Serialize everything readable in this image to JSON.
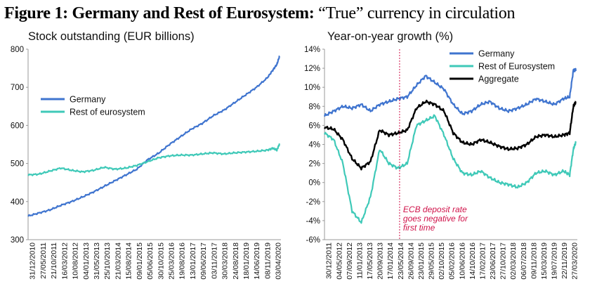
{
  "figure": {
    "title_bold": "Figure 1: Germany and Rest of Eurosystem:",
    "title_rest": " “True” currency in circulation"
  },
  "colors": {
    "germany": "#3f74cf",
    "rest": "#3fc9b8",
    "aggregate": "#000000",
    "marker": "#d0134a"
  },
  "chart_data": [
    {
      "type": "line",
      "title": "Stock outstanding (EUR billions)",
      "ylim": [
        300,
        800
      ],
      "yticks": [
        300,
        400,
        500,
        600,
        700,
        800
      ],
      "grid": false,
      "legend_position": "upper-left",
      "x_tick_labels": [
        "31/12/2010",
        "27/05/2011",
        "21/10/2011",
        "16/03/2012",
        "10/08/2012",
        "04/01/2013",
        "31/05/2013",
        "25/10/2013",
        "21/03/2014",
        "15/08/2014",
        "09/01/2015",
        "05/06/2015",
        "30/10/2015",
        "25/03/2016",
        "19/08/2016",
        "13/01/2017",
        "09/06/2017",
        "03/11/2017",
        "30/03/2018",
        "24/08/2018",
        "18/01/2019",
        "14/06/2019",
        "08/11/2019",
        "03/04/2020"
      ],
      "x_tick_labels_all": [
        "31/12/2010",
        "27/05/2011",
        "21/10/2011",
        "16/03/2012",
        "10/08/2012",
        "04/01/2013",
        "31/05/2013",
        "25/10/2013",
        "21/03/2014",
        "15/08/2014",
        "09/01/2015",
        "05/06/2015",
        "30/10/2015",
        "25/03/2016",
        "19/08/2016",
        "13/01/2017",
        "09/06/2017",
        "03/11/2017",
        "30/03/2018",
        "24/08/2018",
        "18/01/2019",
        "14/06/2019",
        "08/11/2019",
        "03/04/2020"
      ],
      "x": [
        2011.0,
        2011.4,
        2011.8,
        2012.2,
        2012.6,
        2013.0,
        2013.4,
        2013.8,
        2014.2,
        2014.6,
        2015.0,
        2015.4,
        2015.8,
        2016.2,
        2016.6,
        2017.0,
        2017.4,
        2017.8,
        2018.2,
        2018.6,
        2019.0,
        2019.4,
        2019.8,
        2020.0,
        2020.15,
        2020.25
      ],
      "series": [
        {
          "name": "Germany",
          "values": [
            362,
            370,
            378,
            390,
            400,
            412,
            425,
            440,
            455,
            470,
            485,
            510,
            527,
            550,
            570,
            590,
            605,
            625,
            640,
            660,
            680,
            700,
            725,
            745,
            760,
            782
          ]
        },
        {
          "name": "Rest of eurosystem",
          "values": [
            470,
            472,
            480,
            488,
            482,
            478,
            482,
            490,
            485,
            488,
            495,
            505,
            515,
            520,
            522,
            522,
            525,
            528,
            525,
            528,
            530,
            532,
            535,
            540,
            535,
            552
          ]
        }
      ]
    },
    {
      "type": "line",
      "title": "Year-on-year growth (%)",
      "ylim": [
        -6,
        14
      ],
      "yticks": [
        "-6%",
        "-4%",
        "-2%",
        "0%",
        "2%",
        "4%",
        "6%",
        "8%",
        "10%",
        "12%",
        "14%"
      ],
      "grid": false,
      "legend_position": "upper-right",
      "x_tick_labels": [
        "30/12/2011",
        "04/05/2012",
        "07/09/2012",
        "11/01/2013",
        "17/05/2013",
        "20/09/2013",
        "17/01/2014",
        "23/05/2014",
        "26/09/2014",
        "23/01/2015",
        "29/05/2015",
        "02/10/2015",
        "05/02/2016",
        "10/06/2016",
        "14/10/2016",
        "17/02/2017",
        "23/06/2017",
        "27/10/2017",
        "02/03/2018",
        "06/07/2018",
        "09/11/2018",
        "15/03/2019",
        "19/07/2019",
        "22/11/2019",
        "27/03/2020"
      ],
      "x_tick_labels_all": [
        "30/12/2011",
        "04/05/2012",
        "07/09/2012",
        "11/01/2013",
        "17/05/2013",
        "20/09/2013",
        "17/01/2014",
        "23/05/2014",
        "26/09/2014",
        "23/01/2015",
        "29/05/2015",
        "02/10/2015",
        "05/02/2016",
        "10/06/2016",
        "14/10/2016",
        "17/02/2017",
        "23/06/2017",
        "27/10/2017",
        "02/03/2018",
        "06/07/2018",
        "09/11/2018",
        "15/03/2019",
        "19/07/2019",
        "22/11/2019",
        "27/03/2020"
      ],
      "x": [
        2012.0,
        2012.3,
        2012.6,
        2012.9,
        2013.2,
        2013.5,
        2013.8,
        2014.1,
        2014.4,
        2014.7,
        2015.0,
        2015.3,
        2015.6,
        2015.9,
        2016.2,
        2016.5,
        2016.8,
        2017.1,
        2017.4,
        2017.7,
        2018.0,
        2018.3,
        2018.6,
        2018.9,
        2019.2,
        2019.5,
        2019.8,
        2020.0,
        2020.12,
        2020.2
      ],
      "series": [
        {
          "name": "Germany",
          "values": [
            7.0,
            7.5,
            8.0,
            7.8,
            8.2,
            7.5,
            8.2,
            8.5,
            8.8,
            9.0,
            10.2,
            11.2,
            10.5,
            9.8,
            8.2,
            7.2,
            7.5,
            8.2,
            8.5,
            7.8,
            7.5,
            7.8,
            8.2,
            8.8,
            8.5,
            8.2,
            8.8,
            9.0,
            11.8,
            11.8
          ]
        },
        {
          "name": "Rest of Eurosystem",
          "values": [
            5.2,
            4.5,
            2.0,
            -3.0,
            -4.2,
            -1.5,
            3.5,
            2.0,
            1.5,
            2.0,
            6.0,
            6.5,
            7.0,
            5.0,
            2.5,
            1.0,
            0.8,
            1.2,
            0.5,
            0.0,
            -0.2,
            -0.5,
            0.0,
            1.0,
            1.2,
            0.8,
            1.2,
            0.8,
            3.5,
            4.2
          ]
        },
        {
          "name": "Aggregate",
          "values": [
            5.8,
            5.6,
            4.5,
            2.5,
            1.5,
            2.2,
            5.5,
            5.0,
            5.2,
            5.5,
            7.8,
            8.5,
            8.2,
            7.5,
            5.2,
            4.2,
            4.0,
            4.5,
            4.2,
            3.8,
            3.5,
            3.6,
            4.0,
            4.8,
            5.0,
            4.8,
            5.0,
            5.2,
            8.0,
            8.5
          ]
        }
      ],
      "annotation": {
        "lines": [
          "ECB deposit rate",
          "goes negative for",
          "first time"
        ],
        "x": 2014.45
      }
    }
  ]
}
